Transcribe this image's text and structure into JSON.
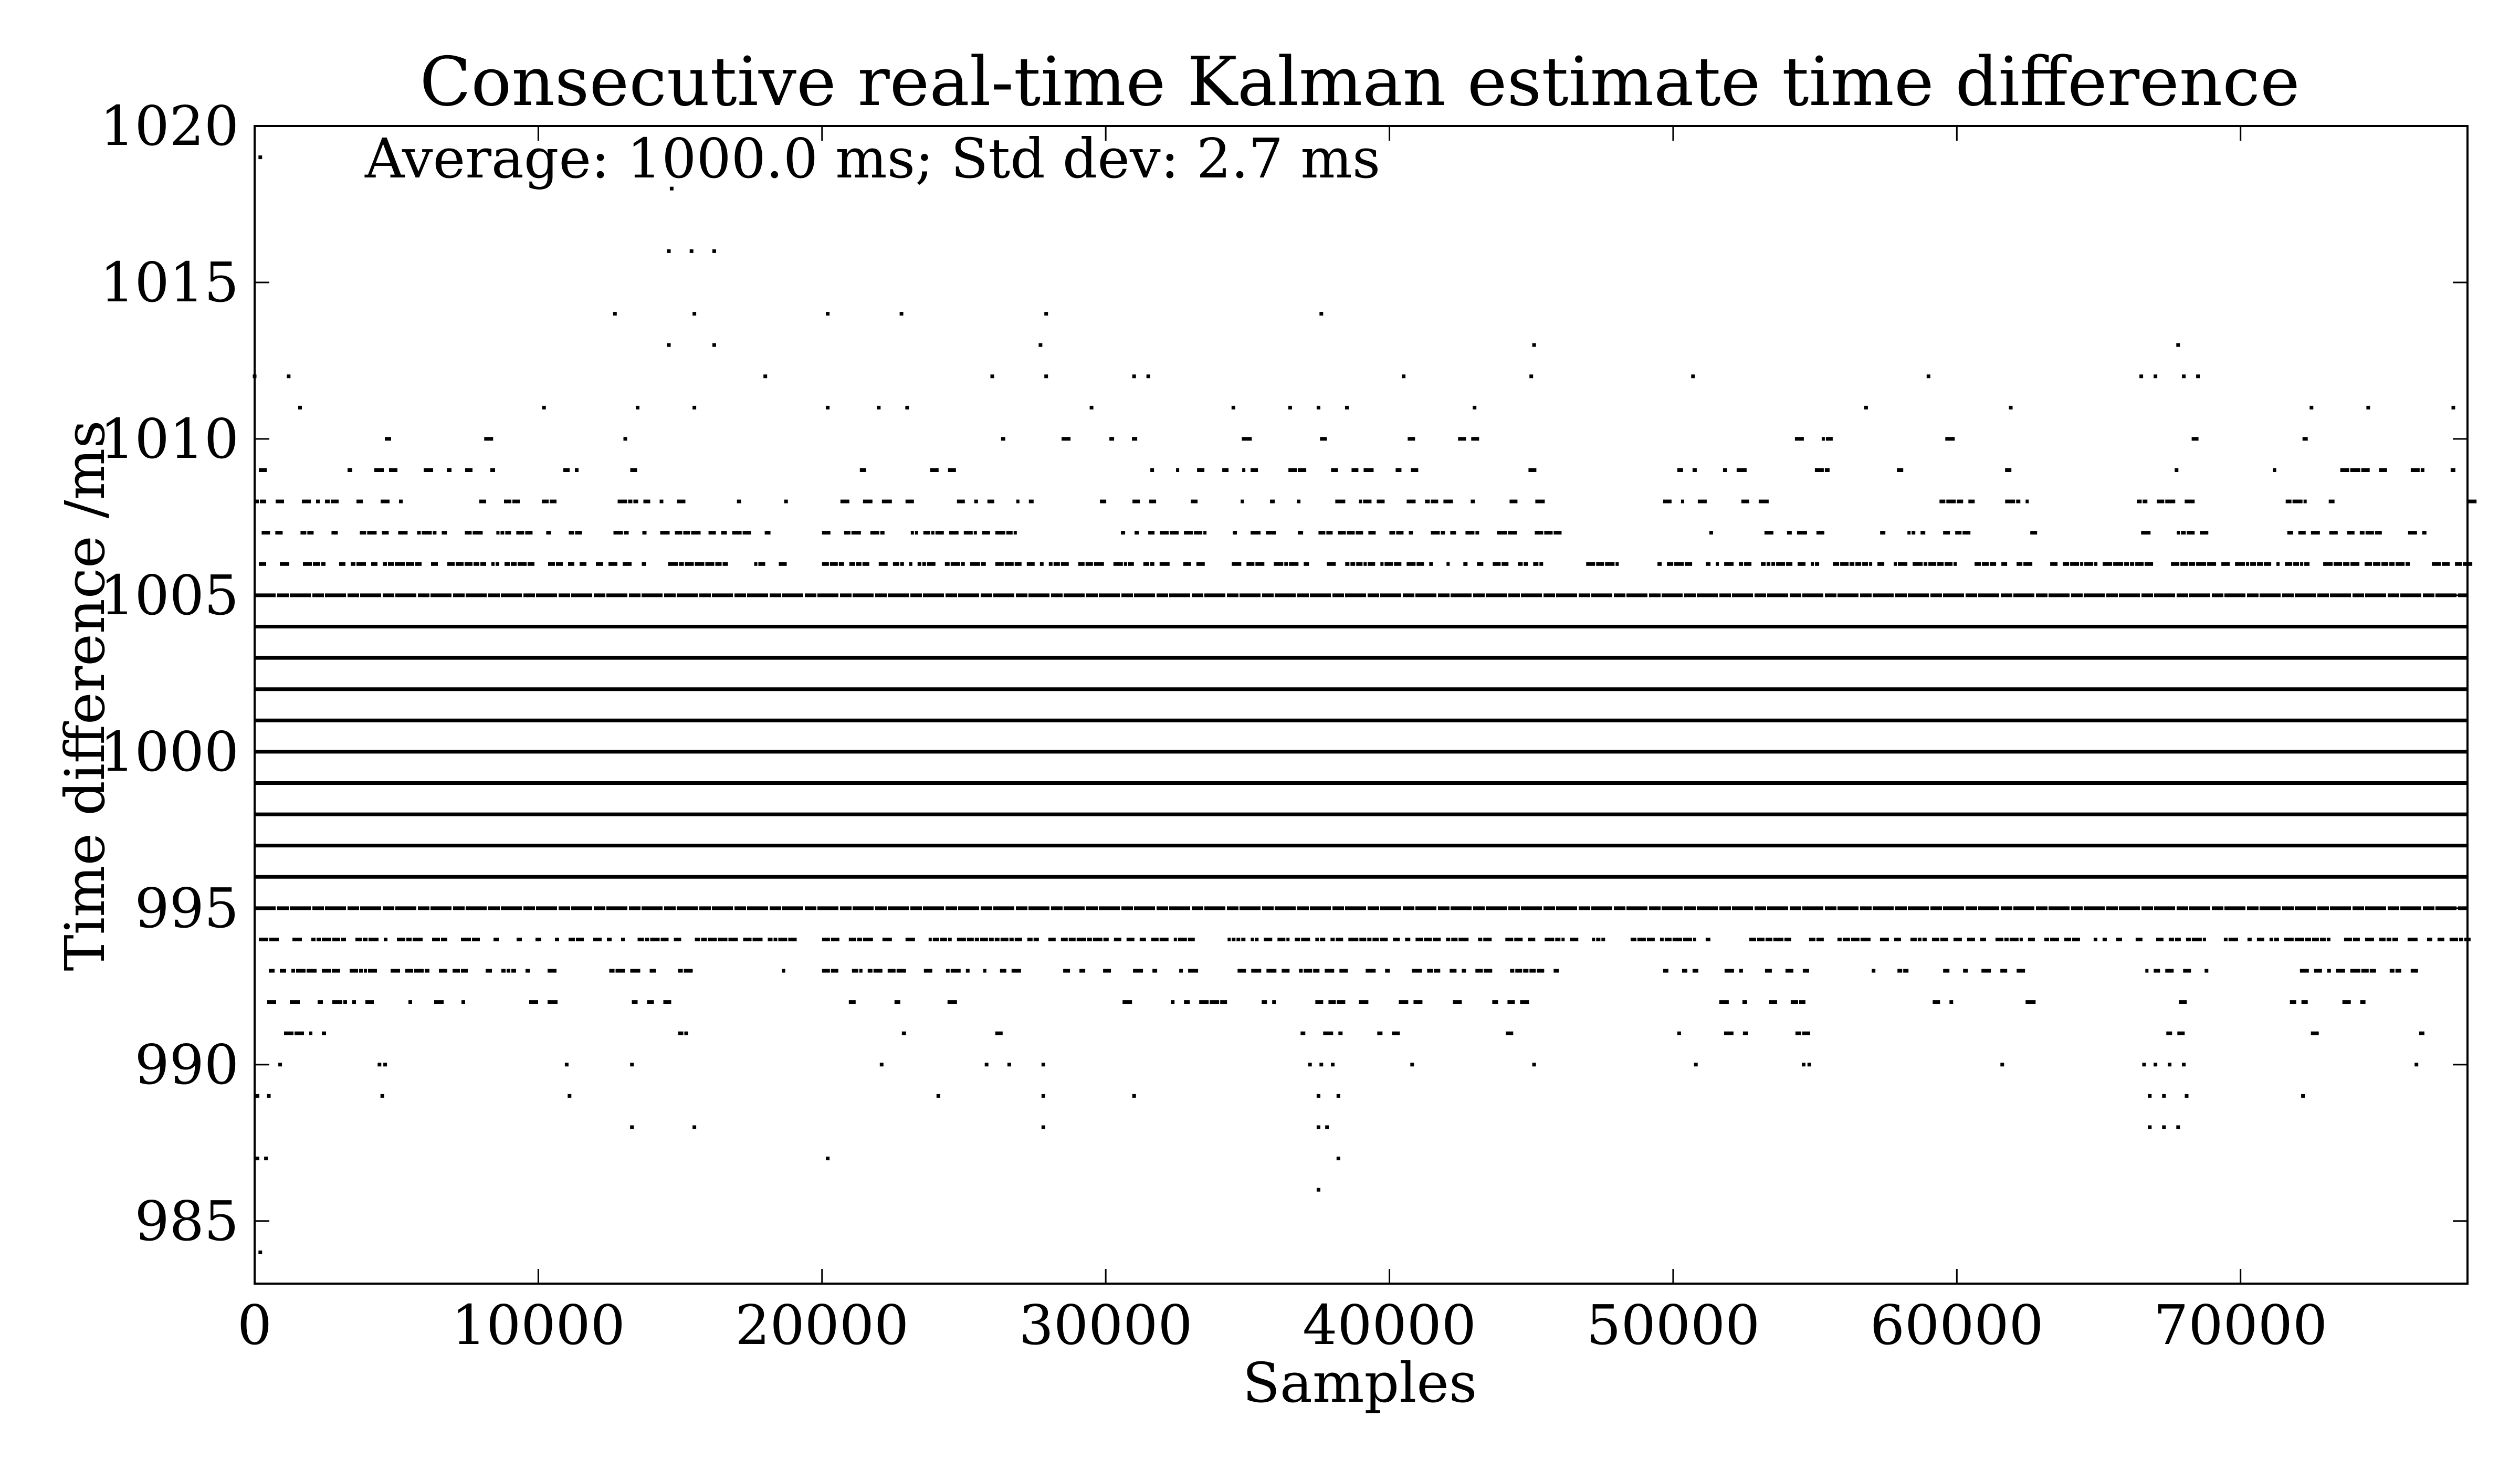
{
  "chart_data": {
    "type": "scatter",
    "title": "Consecutive real-time Kalman estimate time difference",
    "xlabel": "Samples",
    "ylabel": "Time difference /ms",
    "annotation": "Average: 1000.0 ms; Std dev: 2.7 ms",
    "xlim": [
      0,
      78000
    ],
    "ylim": [
      983,
      1020
    ],
    "xticks": [
      0,
      10000,
      20000,
      30000,
      40000,
      50000,
      60000,
      70000
    ],
    "yticks": [
      985,
      990,
      995,
      1000,
      1005,
      1010,
      1015,
      1020
    ],
    "grid": false,
    "marker_color": "#000000",
    "continuous_levels": [
      996,
      997,
      998,
      999,
      1000,
      1001,
      1002,
      1003,
      1004
    ],
    "dense_levels": [
      {
        "y": 995,
        "x_ranges": [
          [
            0,
            78000
          ]
        ]
      },
      {
        "y": 1005,
        "x_ranges": [
          [
            0,
            78000
          ]
        ]
      }
    ],
    "banded_levels": [
      {
        "y": 1006,
        "x_ranges": [
          [
            0,
            13000
          ],
          [
            13500,
            19000
          ],
          [
            20000,
            33500
          ],
          [
            34000,
            48000
          ],
          [
            49300,
            78000
          ]
        ]
      },
      {
        "y": 994,
        "x_ranges": [
          [
            0,
            13000
          ],
          [
            13500,
            19000
          ],
          [
            20000,
            33500
          ],
          [
            34000,
            47500
          ],
          [
            48500,
            78000
          ]
        ]
      },
      {
        "y": 1007,
        "x_ranges": [
          [
            100,
            11500
          ],
          [
            12500,
            15500
          ],
          [
            16000,
            18500
          ],
          [
            20000,
            27000
          ],
          [
            29500,
            37000
          ],
          [
            37500,
            46000
          ],
          [
            49500,
            55500
          ],
          [
            57000,
            63000
          ],
          [
            66200,
            69000
          ],
          [
            71500,
            76500
          ]
        ]
      },
      {
        "y": 993,
        "x_ranges": [
          [
            500,
            11500
          ],
          [
            12500,
            15500
          ],
          [
            18000,
            19000
          ],
          [
            20000,
            27000
          ],
          [
            28500,
            33000
          ],
          [
            34500,
            46000
          ],
          [
            49500,
            55500
          ],
          [
            57000,
            63000
          ],
          [
            66200,
            69000
          ],
          [
            71500,
            76500
          ]
        ]
      },
      {
        "y": 1008,
        "x_ranges": [
          [
            0,
            10500
          ],
          [
            12500,
            15500
          ],
          [
            17000,
            19000
          ],
          [
            20500,
            27500
          ],
          [
            29500,
            37000
          ],
          [
            37500,
            45500
          ],
          [
            49500,
            55000
          ],
          [
            58500,
            62500
          ],
          [
            66200,
            68500
          ],
          [
            71000,
            74500
          ],
          [
            76800,
            78000
          ]
        ]
      },
      {
        "y": 992,
        "x_ranges": [
          [
            0,
            10500
          ],
          [
            13000,
            15500
          ],
          [
            20500,
            27500
          ],
          [
            30000,
            36000
          ],
          [
            36500,
            45500
          ],
          [
            50000,
            55500
          ],
          [
            59000,
            62500
          ],
          [
            66200,
            68500
          ],
          [
            71000,
            74500
          ]
        ]
      },
      {
        "y": 1009,
        "x_ranges": [
          [
            0,
            11500
          ],
          [
            12500,
            15500
          ],
          [
            20000,
            27500
          ],
          [
            29500,
            37000
          ],
          [
            37500,
            46000
          ],
          [
            50000,
            55500
          ],
          [
            57000,
            62500
          ],
          [
            66200,
            68500
          ],
          [
            71000,
            75000
          ],
          [
            76000,
            77500
          ]
        ]
      },
      {
        "y": 991,
        "x_ranges": [
          [
            0,
            5000
          ],
          [
            13000,
            15500
          ],
          [
            20000,
            27500
          ],
          [
            34500,
            45000
          ],
          [
            50000,
            55000
          ],
          [
            61000,
            62000
          ],
          [
            66200,
            68000
          ],
          [
            71000,
            72500
          ],
          [
            76000,
            77000
          ]
        ]
      },
      {
        "y": 1010,
        "x_ranges": [
          [
            0,
            5000
          ],
          [
            7500,
            9000
          ],
          [
            13000,
            15500
          ],
          [
            19500,
            26500
          ],
          [
            28000,
            31500
          ],
          [
            34500,
            43500
          ],
          [
            44500,
            45000
          ],
          [
            50000,
            57000
          ],
          [
            59000,
            62500
          ],
          [
            66500,
            68500
          ],
          [
            71000,
            73000
          ],
          [
            75000,
            76000
          ]
        ]
      }
    ],
    "sparse_points": [
      {
        "x": 0,
        "y": 1012
      },
      {
        "x": 1200,
        "y": 1012
      },
      {
        "x": 1600,
        "y": 1011
      },
      {
        "x": 10200,
        "y": 1011
      },
      {
        "x": 13500,
        "y": 1011
      },
      {
        "x": 15500,
        "y": 1011
      },
      {
        "x": 18000,
        "y": 1012
      },
      {
        "x": 20200,
        "y": 1011
      },
      {
        "x": 22000,
        "y": 1011
      },
      {
        "x": 23000,
        "y": 1011
      },
      {
        "x": 26000,
        "y": 1012
      },
      {
        "x": 27900,
        "y": 1012
      },
      {
        "x": 29500,
        "y": 1011
      },
      {
        "x": 31000,
        "y": 1012
      },
      {
        "x": 31500,
        "y": 1012
      },
      {
        "x": 34500,
        "y": 1011
      },
      {
        "x": 36500,
        "y": 1011
      },
      {
        "x": 37500,
        "y": 1011
      },
      {
        "x": 38500,
        "y": 1011
      },
      {
        "x": 40500,
        "y": 1012
      },
      {
        "x": 43000,
        "y": 1011
      },
      {
        "x": 45000,
        "y": 1012
      },
      {
        "x": 50700,
        "y": 1012
      },
      {
        "x": 56800,
        "y": 1011
      },
      {
        "x": 59000,
        "y": 1012
      },
      {
        "x": 61900,
        "y": 1011
      },
      {
        "x": 66500,
        "y": 1012
      },
      {
        "x": 67000,
        "y": 1012
      },
      {
        "x": 68000,
        "y": 1012
      },
      {
        "x": 68500,
        "y": 1012
      },
      {
        "x": 72500,
        "y": 1011
      },
      {
        "x": 74500,
        "y": 1011
      },
      {
        "x": 77500,
        "y": 1011
      },
      {
        "x": 12700,
        "y": 1014
      },
      {
        "x": 14600,
        "y": 1013
      },
      {
        "x": 15500,
        "y": 1014
      },
      {
        "x": 16200,
        "y": 1013
      },
      {
        "x": 20200,
        "y": 1014
      },
      {
        "x": 22800,
        "y": 1014
      },
      {
        "x": 27700,
        "y": 1013
      },
      {
        "x": 27900,
        "y": 1014
      },
      {
        "x": 37600,
        "y": 1014
      },
      {
        "x": 45100,
        "y": 1013
      },
      {
        "x": 67800,
        "y": 1013
      },
      {
        "x": 14600,
        "y": 1016
      },
      {
        "x": 15400,
        "y": 1016
      },
      {
        "x": 16200,
        "y": 1016
      },
      {
        "x": 14700,
        "y": 1018
      },
      {
        "x": 200,
        "y": 1019
      },
      {
        "x": 100,
        "y": 989
      },
      {
        "x": 500,
        "y": 989
      },
      {
        "x": 900,
        "y": 990
      },
      {
        "x": 4400,
        "y": 990
      },
      {
        "x": 4600,
        "y": 990
      },
      {
        "x": 4500,
        "y": 989
      },
      {
        "x": 11000,
        "y": 990
      },
      {
        "x": 11100,
        "y": 989
      },
      {
        "x": 13300,
        "y": 990
      },
      {
        "x": 22100,
        "y": 990
      },
      {
        "x": 24100,
        "y": 989
      },
      {
        "x": 25800,
        "y": 990
      },
      {
        "x": 26600,
        "y": 990
      },
      {
        "x": 27800,
        "y": 990
      },
      {
        "x": 27800,
        "y": 989
      },
      {
        "x": 31000,
        "y": 989
      },
      {
        "x": 37200,
        "y": 990
      },
      {
        "x": 37600,
        "y": 990
      },
      {
        "x": 38000,
        "y": 990
      },
      {
        "x": 37500,
        "y": 989
      },
      {
        "x": 38200,
        "y": 989
      },
      {
        "x": 40800,
        "y": 990
      },
      {
        "x": 45100,
        "y": 990
      },
      {
        "x": 50800,
        "y": 990
      },
      {
        "x": 54600,
        "y": 990
      },
      {
        "x": 54800,
        "y": 990
      },
      {
        "x": 61600,
        "y": 990
      },
      {
        "x": 66600,
        "y": 990
      },
      {
        "x": 67000,
        "y": 990
      },
      {
        "x": 67500,
        "y": 990
      },
      {
        "x": 68000,
        "y": 990
      },
      {
        "x": 66800,
        "y": 989
      },
      {
        "x": 67300,
        "y": 989
      },
      {
        "x": 68100,
        "y": 989
      },
      {
        "x": 72200,
        "y": 989
      },
      {
        "x": 76200,
        "y": 990
      },
      {
        "x": 13300,
        "y": 988
      },
      {
        "x": 15500,
        "y": 988
      },
      {
        "x": 27800,
        "y": 988
      },
      {
        "x": 37500,
        "y": 988
      },
      {
        "x": 37800,
        "y": 988
      },
      {
        "x": 66800,
        "y": 988
      },
      {
        "x": 67300,
        "y": 988
      },
      {
        "x": 67800,
        "y": 988
      },
      {
        "x": 100,
        "y": 987
      },
      {
        "x": 400,
        "y": 987
      },
      {
        "x": 20200,
        "y": 987
      },
      {
        "x": 38200,
        "y": 987
      },
      {
        "x": 37500,
        "y": 986
      },
      {
        "x": 200,
        "y": 984
      }
    ]
  }
}
